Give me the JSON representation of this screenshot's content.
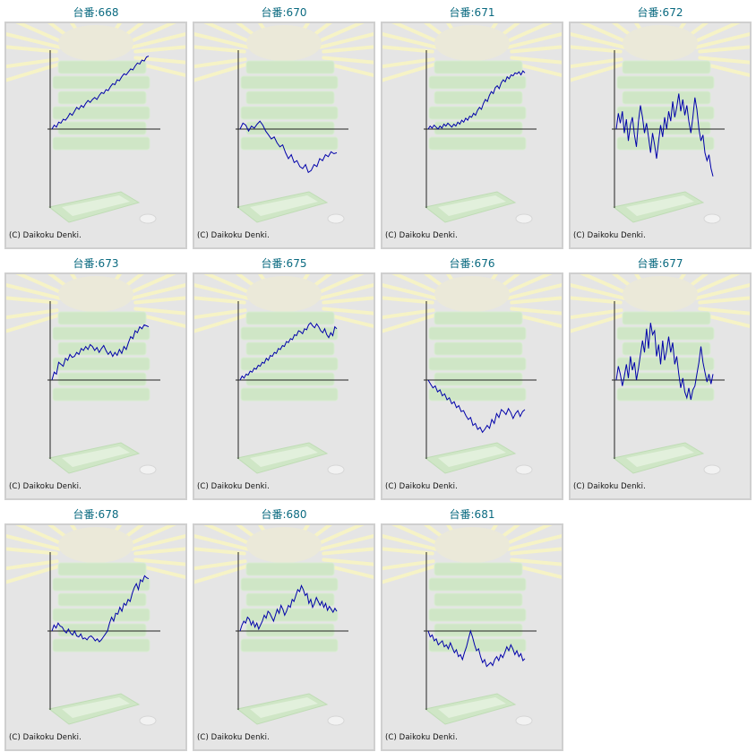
{
  "copyright": "(C) Daikoku Denki.",
  "colors": {
    "line": "#0000aa",
    "title": "#0a6a80",
    "background": "#e5e5e5",
    "border": "#cfcfcf",
    "axis": "#222222"
  },
  "chart_data": [
    {
      "type": "line",
      "title": "台番:668",
      "values": [
        0,
        200,
        100,
        350,
        300,
        500,
        450,
        600,
        800,
        700,
        900,
        1100,
        1000,
        1200,
        1100,
        1300,
        1450,
        1350,
        1500,
        1600,
        1500,
        1700,
        1850,
        1800,
        2000,
        1950,
        2150,
        2300,
        2250,
        2500,
        2450,
        2650,
        2800,
        2750,
        2900,
        3050,
        3000,
        3200,
        3350,
        3300,
        3500,
        3450,
        3650,
        3700
      ]
    },
    {
      "type": "line",
      "title": "台番:670",
      "values": [
        0,
        300,
        200,
        -100,
        150,
        50,
        250,
        400,
        200,
        -100,
        -300,
        -500,
        -400,
        -700,
        -900,
        -800,
        -1200,
        -1500,
        -1300,
        -1700,
        -1600,
        -1900,
        -2000,
        -1800,
        -2200,
        -2100,
        -1800,
        -1900,
        -1500,
        -1600,
        -1300,
        -1400,
        -1150,
        -1250,
        -1200
      ]
    },
    {
      "type": "line",
      "title": "台番:671",
      "values": [
        0,
        150,
        50,
        200,
        100,
        0,
        150,
        50,
        250,
        150,
        300,
        200,
        100,
        250,
        150,
        350,
        250,
        450,
        350,
        550,
        450,
        650,
        600,
        800,
        700,
        950,
        1100,
        1000,
        1300,
        1500,
        1400,
        1700,
        1900,
        1800,
        2100,
        2200,
        2050,
        2350,
        2500,
        2400,
        2650,
        2550,
        2750,
        2700,
        2850,
        2800,
        2900,
        2750,
        2950,
        2850
      ]
    },
    {
      "type": "line",
      "title": "台番:672",
      "values": [
        0,
        800,
        300,
        900,
        -200,
        500,
        -600,
        200,
        600,
        -300,
        -900,
        400,
        1200,
        600,
        -200,
        300,
        -400,
        -1200,
        -200,
        -800,
        -1500,
        -600,
        200,
        -400,
        600,
        0,
        900,
        400,
        1400,
        600,
        1100,
        1800,
        900,
        1500,
        700,
        1200,
        400,
        -200,
        600,
        1600,
        1000,
        0,
        -600,
        -300,
        -1200,
        -1600,
        -1300,
        -2000,
        -2400
      ]
    },
    {
      "type": "line",
      "title": "台番:673",
      "values": [
        0,
        400,
        300,
        900,
        800,
        700,
        1100,
        1000,
        1300,
        1150,
        1200,
        1400,
        1300,
        1600,
        1500,
        1700,
        1550,
        1800,
        1700,
        1500,
        1650,
        1400,
        1600,
        1750,
        1500,
        1300,
        1450,
        1200,
        1400,
        1250,
        1550,
        1350,
        1700,
        1550,
        1900,
        2200,
        2100,
        2500,
        2400,
        2700,
        2600,
        2800,
        2750,
        2700
      ]
    },
    {
      "type": "line",
      "title": "台番:675",
      "values": [
        0,
        200,
        100,
        300,
        250,
        450,
        400,
        600,
        550,
        750,
        700,
        900,
        850,
        1100,
        1000,
        1250,
        1200,
        1400,
        1350,
        1600,
        1550,
        1750,
        1700,
        1950,
        1900,
        2100,
        2050,
        2300,
        2250,
        2500,
        2450,
        2350,
        2600,
        2550,
        2800,
        2900,
        2750,
        2650,
        2850,
        2700,
        2500,
        2400,
        2600,
        2300,
        2150,
        2400,
        2250,
        2700,
        2600
      ]
    },
    {
      "type": "line",
      "title": "台番:676",
      "values": [
        0,
        -200,
        -400,
        -300,
        -600,
        -500,
        -800,
        -700,
        -1000,
        -900,
        -1200,
        -1100,
        -1400,
        -1300,
        -1600,
        -1550,
        -1800,
        -2000,
        -1900,
        -2300,
        -2200,
        -2500,
        -2400,
        -2650,
        -2500,
        -2300,
        -2450,
        -2000,
        -2200,
        -1700,
        -1900,
        -1500,
        -1600,
        -1750,
        -1450,
        -1650,
        -1950,
        -1700,
        -1550,
        -1850,
        -1600,
        -1500
      ]
    },
    {
      "type": "line",
      "title": "台番:677",
      "values": [
        0,
        700,
        300,
        -300,
        200,
        800,
        100,
        1200,
        500,
        900,
        0,
        600,
        1300,
        2000,
        1400,
        2600,
        1600,
        2900,
        2300,
        2500,
        1200,
        1800,
        800,
        2000,
        1000,
        1500,
        2200,
        1400,
        1900,
        800,
        1200,
        300,
        -400,
        100,
        -600,
        -900,
        -400,
        -1000,
        -500,
        -300,
        300,
        900,
        1700,
        900,
        400,
        -100,
        300,
        -200,
        300
      ]
    },
    {
      "type": "line",
      "title": "台番:678",
      "values": [
        0,
        300,
        150,
        400,
        250,
        200,
        0,
        -100,
        100,
        -100,
        -200,
        0,
        -250,
        -300,
        -150,
        -400,
        -350,
        -450,
        -300,
        -250,
        -350,
        -500,
        -400,
        -550,
        -450,
        -300,
        -150,
        0,
        400,
        700,
        500,
        900,
        850,
        1200,
        1000,
        1400,
        1300,
        1600,
        1500,
        1900,
        2200,
        2400,
        2100,
        2600,
        2500,
        2800,
        2700,
        2650
      ]
    },
    {
      "type": "line",
      "title": "台番:680",
      "values": [
        0,
        300,
        500,
        400,
        700,
        600,
        300,
        500,
        200,
        400,
        100,
        300,
        500,
        800,
        650,
        1000,
        900,
        700,
        500,
        800,
        1100,
        900,
        1300,
        1100,
        800,
        1000,
        1300,
        1200,
        1600,
        1500,
        1800,
        2100,
        2000,
        2300,
        2100,
        1800,
        1900,
        1400,
        1600,
        1200,
        1400,
        1700,
        1500,
        1300,
        1500,
        1200,
        1400,
        1050,
        1250,
        1100,
        950,
        1150,
        1000
      ]
    },
    {
      "type": "line",
      "title": "台番:681",
      "values": [
        0,
        -300,
        -200,
        -500,
        -400,
        -700,
        -600,
        -500,
        -800,
        -700,
        -900,
        -600,
        -850,
        -1100,
        -950,
        -1300,
        -1200,
        -1450,
        -1100,
        -800,
        -400,
        0,
        -300,
        -700,
        -1000,
        -900,
        -1300,
        -1600,
        -1450,
        -1800,
        -1700,
        -1600,
        -1750,
        -1450,
        -1300,
        -1500,
        -1200,
        -1350,
        -1100,
        -800,
        -1000,
        -700,
        -900,
        -1200,
        -1000,
        -1300,
        -1150,
        -1500,
        -1400
      ]
    }
  ]
}
